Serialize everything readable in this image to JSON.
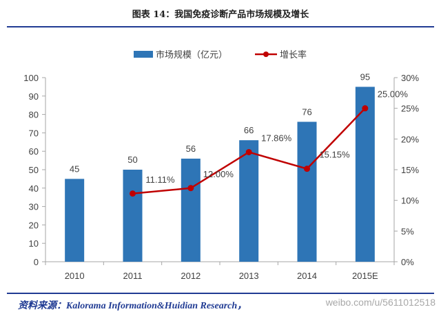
{
  "page": {
    "title": "图表 14：我国免疫诊断产品市场规模及增长",
    "source": "资料来源：Kalorama Information&Huidian Research，",
    "watermark": "weibo.com/u/5611012518"
  },
  "chart_data": {
    "type": "bar",
    "categories": [
      "2010",
      "2011",
      "2012",
      "2013",
      "2014",
      "2015E"
    ],
    "series": [
      {
        "name": "市场规模（亿元）",
        "type": "bar",
        "axis": "left",
        "values": [
          45,
          50,
          56,
          66,
          76,
          95
        ],
        "labels": [
          "45",
          "50",
          "56",
          "66",
          "76",
          "95"
        ],
        "color": "#2e75b6"
      },
      {
        "name": "增长率",
        "type": "line",
        "axis": "right",
        "values": [
          null,
          11.11,
          12.0,
          17.86,
          15.15,
          25.0
        ],
        "labels": [
          "",
          "11.11%",
          "12.00%",
          "17.86%",
          "15.15%",
          "25.00%"
        ],
        "color": "#c00000"
      }
    ],
    "ylim_left": [
      0,
      100
    ],
    "yticks_left": [
      "0",
      "10",
      "20",
      "30",
      "40",
      "50",
      "60",
      "70",
      "80",
      "90",
      "100"
    ],
    "ylim_right": [
      0,
      30
    ],
    "yticks_right": [
      "0%",
      "5%",
      "10%",
      "15%",
      "20%",
      "25%",
      "30%"
    ],
    "legend_position": "top",
    "grid": false
  }
}
